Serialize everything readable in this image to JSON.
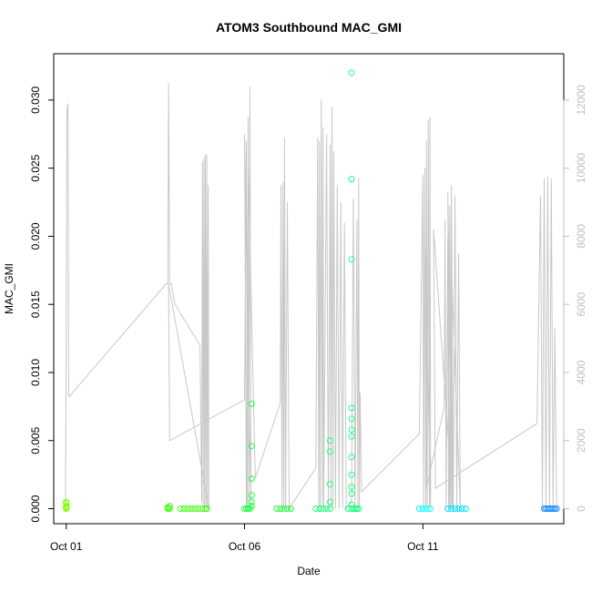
{
  "chart_data": {
    "type": "scatter",
    "title": "ATOM3 Southbound MAC_GMI",
    "xlabel": "Date",
    "ylabel": "MAC_GMI",
    "ylabel_right": "",
    "x_ticks": [
      "Oct 01",
      "Oct 06",
      "Oct 11"
    ],
    "x_tick_values": [
      1,
      6,
      11
    ],
    "xlim": [
      0.65,
      14.95
    ],
    "y_ticks": [
      "0.000",
      "0.005",
      "0.010",
      "0.015",
      "0.020",
      "0.025",
      "0.030"
    ],
    "y_tick_values": [
      0,
      0.005,
      0.01,
      0.015,
      0.02,
      0.025,
      0.03
    ],
    "ylim": [
      -0.0011,
      0.0334
    ],
    "y2_ticks": [
      "0",
      "2000",
      "4000",
      "6000",
      "8000",
      "10000",
      "12000"
    ],
    "y2_tick_values": [
      0,
      2000,
      4000,
      6000,
      8000,
      10000,
      12000
    ],
    "y2lim": [
      -440,
      13360
    ],
    "grid": false,
    "legend": "none",
    "series": [
      {
        "points_color": "#80ff00",
        "points": [
          [
            1.0,
            0.0
          ],
          [
            1.0,
            0.0001
          ],
          [
            1.0,
            0.0002
          ],
          [
            1.0,
            0.0004
          ],
          [
            1.0,
            0.0005
          ],
          [
            1.0,
            5e-05
          ]
        ]
      },
      {
        "points_color": "#40ff10",
        "points": [
          [
            3.85,
            0.0
          ],
          [
            3.85,
            0.0001
          ],
          [
            3.9,
            0.0
          ],
          [
            3.9,
            0.0002
          ],
          [
            4.2,
            0.0
          ],
          [
            4.3,
            0.0
          ],
          [
            4.4,
            0.0
          ],
          [
            4.5,
            0.0
          ],
          [
            4.6,
            0.0
          ],
          [
            4.7,
            0.0
          ],
          [
            4.8,
            0.0
          ],
          [
            4.9,
            0.0
          ],
          [
            4.95,
            0.0
          ]
        ]
      },
      {
        "points_color": "#20ff40",
        "points": [
          [
            6.0,
            0.0
          ],
          [
            6.05,
            0.0
          ],
          [
            6.1,
            0.0
          ],
          [
            6.15,
            0.0
          ],
          [
            6.2,
            0.0002
          ],
          [
            6.2,
            0.0005
          ],
          [
            6.2,
            0.001
          ],
          [
            6.2,
            0.0022
          ],
          [
            6.2,
            0.0046
          ],
          [
            6.2,
            0.0077
          ],
          [
            6.9,
            0.0
          ],
          [
            7.0,
            0.0
          ],
          [
            7.1,
            0.0
          ],
          [
            7.2,
            0.0
          ],
          [
            7.3,
            0.0
          ]
        ]
      },
      {
        "points_color": "#20ff80",
        "points": [
          [
            8.0,
            0.0
          ],
          [
            8.1,
            0.0
          ],
          [
            8.2,
            0.0
          ],
          [
            8.3,
            0.0
          ],
          [
            8.4,
            0.0
          ],
          [
            8.4,
            0.0005
          ],
          [
            8.4,
            0.0018
          ],
          [
            8.4,
            0.0042
          ],
          [
            8.4,
            0.005
          ],
          [
            8.9,
            0.0
          ],
          [
            9.0,
            0.0
          ],
          [
            9.05,
            0.0
          ],
          [
            9.1,
            0.0
          ],
          [
            9.15,
            0.0
          ],
          [
            9.2,
            0.0
          ],
          [
            9.0,
            0.0003
          ],
          [
            9.0,
            0.0011
          ],
          [
            9.0,
            0.0016
          ],
          [
            9.0,
            0.0025
          ],
          [
            9.0,
            0.0038
          ],
          [
            9.0,
            0.0053
          ],
          [
            9.0,
            0.0058
          ],
          [
            9.0,
            0.0066
          ],
          [
            9.0,
            0.0074
          ],
          [
            9.0,
            0.0183
          ],
          [
            9.0,
            0.0242
          ],
          [
            9.0,
            0.032
          ]
        ]
      },
      {
        "points_color": "#00ffff",
        "points": [
          [
            10.9,
            0.0
          ],
          [
            11.0,
            0.0
          ],
          [
            11.1,
            0.0
          ],
          [
            11.2,
            0.0
          ]
        ]
      },
      {
        "points_color": "#00e0ff",
        "points": [
          [
            11.7,
            0.0
          ],
          [
            11.8,
            0.0
          ],
          [
            11.9,
            0.0
          ],
          [
            12.0,
            0.0
          ],
          [
            12.1,
            0.0
          ],
          [
            12.2,
            0.0
          ]
        ]
      },
      {
        "points_color": "#1e90ff",
        "points": [
          [
            14.4,
            0.0
          ],
          [
            14.45,
            0.0
          ],
          [
            14.5,
            0.0
          ],
          [
            14.55,
            0.0
          ],
          [
            14.6,
            0.0
          ],
          [
            14.65,
            0.0
          ],
          [
            14.7,
            0.0
          ],
          [
            14.75,
            0.0
          ]
        ]
      }
    ],
    "line_series": {
      "color": "#c8c8c8",
      "axis": "right",
      "points": [
        [
          0.98,
          0
        ],
        [
          1.0,
          5000
        ],
        [
          1.02,
          11700
        ],
        [
          1.05,
          11900
        ],
        [
          1.07,
          3300
        ],
        [
          1.09,
          3300
        ],
        [
          3.8,
          6600
        ],
        [
          3.85,
          6600
        ],
        [
          3.87,
          12500
        ],
        [
          3.9,
          6600
        ],
        [
          3.95,
          6600
        ],
        [
          4.05,
          6000
        ],
        [
          4.75,
          4800
        ],
        [
          4.8,
          200
        ],
        [
          4.82,
          10200
        ],
        [
          4.84,
          0
        ],
        [
          4.86,
          10300
        ],
        [
          4.88,
          0
        ],
        [
          4.9,
          10400
        ],
        [
          4.92,
          0
        ],
        [
          4.94,
          10400
        ],
        [
          4.96,
          0
        ],
        [
          4.98,
          9500
        ],
        [
          5.0,
          0
        ],
        [
          3.87,
          6600
        ],
        [
          3.9,
          2000
        ],
        [
          6.0,
          3200
        ],
        [
          6.05,
          10800
        ],
        [
          6.08,
          0
        ],
        [
          6.1,
          11500
        ],
        [
          6.12,
          0
        ],
        [
          6.15,
          12400
        ],
        [
          6.18,
          0
        ],
        [
          6.0,
          11000
        ],
        [
          6.05,
          0
        ],
        [
          6.1,
          10200
        ],
        [
          6.3,
          900
        ],
        [
          7.0,
          3100
        ],
        [
          7.02,
          9500
        ],
        [
          7.05,
          0
        ],
        [
          7.08,
          9600
        ],
        [
          7.1,
          0
        ],
        [
          7.12,
          10900
        ],
        [
          7.15,
          0
        ],
        [
          7.2,
          9000
        ],
        [
          7.25,
          0
        ],
        [
          8.0,
          1200
        ],
        [
          8.05,
          10900
        ],
        [
          8.08,
          0
        ],
        [
          8.1,
          10800
        ],
        [
          8.12,
          0
        ],
        [
          8.15,
          12000
        ],
        [
          8.18,
          0
        ],
        [
          8.2,
          11200
        ],
        [
          8.22,
          0
        ],
        [
          8.3,
          11000
        ],
        [
          8.35,
          0
        ],
        [
          8.4,
          10700
        ],
        [
          8.42,
          0
        ],
        [
          8.45,
          11800
        ],
        [
          8.48,
          0
        ],
        [
          8.5,
          10500
        ],
        [
          8.55,
          0
        ],
        [
          8.6,
          9500
        ],
        [
          8.65,
          0
        ],
        [
          8.7,
          9000
        ],
        [
          8.75,
          0
        ],
        [
          8.8,
          8400
        ],
        [
          8.85,
          0
        ],
        [
          9.0,
          200
        ],
        [
          9.05,
          9100
        ],
        [
          9.1,
          0
        ],
        [
          9.15,
          8500
        ],
        [
          9.18,
          0
        ],
        [
          9.2,
          9700
        ],
        [
          9.22,
          0
        ],
        [
          9.24,
          3400
        ],
        [
          9.28,
          500
        ],
        [
          10.9,
          2200
        ],
        [
          11.0,
          9800
        ],
        [
          11.02,
          0
        ],
        [
          11.05,
          10000
        ],
        [
          11.08,
          0
        ],
        [
          11.1,
          10800
        ],
        [
          11.12,
          0
        ],
        [
          11.15,
          11400
        ],
        [
          11.18,
          0
        ],
        [
          11.2,
          11500
        ],
        [
          11.22,
          0
        ],
        [
          11.05,
          8200
        ],
        [
          11.1,
          600
        ],
        [
          11.6,
          3000
        ],
        [
          11.62,
          8500
        ],
        [
          11.65,
          0
        ],
        [
          11.7,
          8000
        ],
        [
          11.72,
          0
        ],
        [
          11.75,
          8900
        ],
        [
          11.78,
          0
        ],
        [
          11.8,
          8100
        ],
        [
          11.82,
          0
        ],
        [
          11.7,
          9300
        ],
        [
          11.75,
          0
        ],
        [
          11.8,
          9500
        ],
        [
          11.85,
          0
        ],
        [
          11.9,
          9200
        ],
        [
          11.95,
          0
        ],
        [
          12.0,
          7500
        ],
        [
          12.05,
          0
        ],
        [
          11.8,
          7100
        ],
        [
          11.85,
          0
        ],
        [
          11.3,
          8200
        ],
        [
          11.35,
          600
        ],
        [
          14.2,
          2500
        ],
        [
          14.3,
          9200
        ],
        [
          14.35,
          0
        ],
        [
          14.4,
          9700
        ],
        [
          14.45,
          0
        ],
        [
          14.5,
          9750
        ],
        [
          14.55,
          0
        ],
        [
          14.6,
          9700
        ],
        [
          14.65,
          0
        ],
        [
          14.7,
          5300
        ],
        [
          14.75,
          0
        ]
      ]
    }
  }
}
